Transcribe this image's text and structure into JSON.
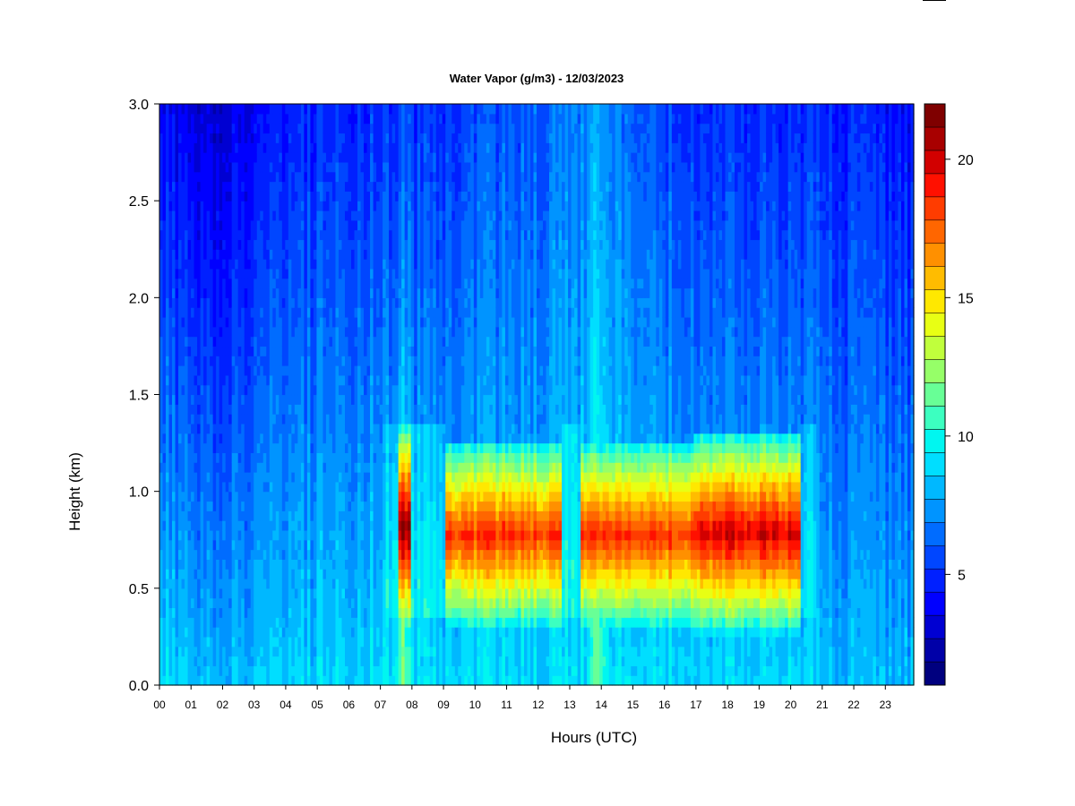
{
  "chart_data": {
    "type": "heatmap",
    "title": "Water Vapor (g/m3) - 12/03/2023",
    "xlabel": "Hours (UTC)",
    "ylabel": "Height (km)",
    "xlim": [
      0,
      23.9
    ],
    "ylim": [
      0,
      3.0
    ],
    "x_ticks": [
      0,
      1,
      2,
      3,
      4,
      5,
      6,
      7,
      8,
      9,
      10,
      11,
      12,
      13,
      14,
      15,
      16,
      17,
      18,
      19,
      20,
      21,
      22,
      23
    ],
    "x_tick_labels": [
      "00",
      "01",
      "02",
      "03",
      "04",
      "05",
      "06",
      "07",
      "08",
      "09",
      "10",
      "11",
      "12",
      "13",
      "14",
      "15",
      "16",
      "17",
      "18",
      "19",
      "20",
      "21",
      "22",
      "23"
    ],
    "y_ticks": [
      0.0,
      0.5,
      1.0,
      1.5,
      2.0,
      2.5,
      3.0
    ],
    "y_tick_labels": [
      "0.0",
      "0.5",
      "1.0",
      "1.5",
      "2.0",
      "2.5",
      "3.0"
    ],
    "colorbar": {
      "range": [
        1,
        22
      ],
      "ticks": [
        5,
        10,
        15,
        20
      ],
      "tick_labels": [
        "5",
        "10",
        "15",
        "20"
      ],
      "levels": 21,
      "colors": [
        "#00007f",
        "#0000a8",
        "#0000d2",
        "#0000ff",
        "#0020ff",
        "#0046ff",
        "#006cff",
        "#0094ff",
        "#00b8ff",
        "#00deff",
        "#00f6f0",
        "#3cffc0",
        "#68ff96",
        "#96ff68",
        "#c0ff3c",
        "#e8ff14",
        "#ffe800",
        "#ffbc00",
        "#ff9000",
        "#ff6600",
        "#ff3c00",
        "#ff1000",
        "#d20000",
        "#a80000",
        "#7f0000"
      ]
    },
    "surface_by_hour": [
      {
        "hour": 0,
        "surface": 9.0,
        "top": 4.0
      },
      {
        "hour": 2,
        "surface": 8.2,
        "top": 3.0
      },
      {
        "hour": 4,
        "surface": 8.6,
        "top": 4.5
      },
      {
        "hour": 6,
        "surface": 9.0,
        "top": 5.0
      },
      {
        "hour": 8,
        "surface": 9.2,
        "top": 5.0
      },
      {
        "hour": 10,
        "surface": 9.0,
        "top": 5.5
      },
      {
        "hour": 12,
        "surface": 9.0,
        "top": 6.0
      },
      {
        "hour": 14,
        "surface": 9.0,
        "top": 7.0
      },
      {
        "hour": 16,
        "surface": 9.2,
        "top": 5.5
      },
      {
        "hour": 18,
        "surface": 9.0,
        "top": 5.0
      },
      {
        "hour": 20,
        "surface": 9.0,
        "top": 5.0
      },
      {
        "hour": 22,
        "surface": 8.0,
        "top": 4.5
      },
      {
        "hour": 23.9,
        "surface": 8.2,
        "top": 4.0
      }
    ],
    "moist_layers": [
      {
        "start": 7.55,
        "end": 7.95,
        "peak": 21.0,
        "base_km": 0.42,
        "top_km": 1.2
      },
      {
        "start": 9.1,
        "end": 12.75,
        "peak": 18.5,
        "base_km": 0.45,
        "top_km": 1.1
      },
      {
        "start": 13.35,
        "end": 16.95,
        "peak": 18.5,
        "base_km": 0.45,
        "top_km": 1.1
      },
      {
        "start": 16.95,
        "end": 20.35,
        "peak": 20.0,
        "base_km": 0.42,
        "top_km": 1.15
      }
    ]
  }
}
